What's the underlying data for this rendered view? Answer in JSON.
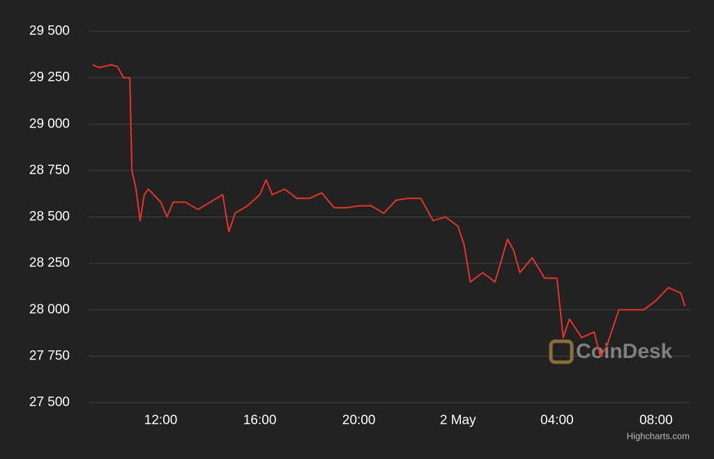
{
  "chart_data": {
    "type": "line",
    "x": [
      "1 May 09:15",
      "1 May 09:30",
      "1 May 10:00",
      "1 May 10:15",
      "1 May 10:30",
      "1 May 10:45",
      "1 May 10:50",
      "1 May 11:00",
      "1 May 11:10",
      "1 May 11:20",
      "1 May 11:30",
      "1 May 12:00",
      "1 May 12:15",
      "1 May 12:30",
      "1 May 13:00",
      "1 May 13:30",
      "1 May 14:00",
      "1 May 14:30",
      "1 May 14:45",
      "1 May 15:00",
      "1 May 15:30",
      "1 May 16:00",
      "1 May 16:15",
      "1 May 16:30",
      "1 May 17:00",
      "1 May 17:30",
      "1 May 18:00",
      "1 May 18:30",
      "1 May 19:00",
      "1 May 19:30",
      "1 May 20:00",
      "1 May 20:30",
      "1 May 21:00",
      "1 May 21:30",
      "1 May 22:00",
      "1 May 22:30",
      "1 May 23:00",
      "1 May 23:30",
      "2 May 00:00",
      "2 May 00:15",
      "2 May 00:30",
      "2 May 01:00",
      "2 May 01:30",
      "2 May 02:00",
      "2 May 02:15",
      "2 May 02:30",
      "2 May 03:00",
      "2 May 03:30",
      "2 May 04:00",
      "2 May 04:15",
      "2 May 04:30",
      "2 May 05:00",
      "2 May 05:30",
      "2 May 05:45",
      "2 May 06:00",
      "2 May 06:30",
      "2 May 07:00",
      "2 May 07:30",
      "2 May 08:00",
      "2 May 08:30",
      "2 May 09:00",
      "2 May 09:10"
    ],
    "series": [
      {
        "color": "#e8352b",
        "values": [
          29320,
          29305,
          29320,
          29310,
          29250,
          29250,
          28750,
          28650,
          28480,
          28620,
          28650,
          28580,
          28500,
          28580,
          28580,
          28540,
          28580,
          28620,
          28420,
          28520,
          28560,
          28620,
          28700,
          28620,
          28650,
          28600,
          28600,
          28630,
          28550,
          28550,
          28560,
          28560,
          28520,
          28590,
          28600,
          28600,
          28480,
          28500,
          28450,
          28350,
          28150,
          28200,
          28150,
          28380,
          28320,
          28200,
          28280,
          28170,
          28170,
          27850,
          27950,
          27850,
          27880,
          27750,
          27800,
          28000,
          28000,
          28000,
          28050,
          28120,
          28090,
          28020
        ]
      }
    ],
    "xlim": [
      "1 May 09:05",
      "2 May 09:23"
    ],
    "xticks": [
      {
        "value": "1 May 12:00",
        "label": "12:00"
      },
      {
        "value": "1 May 16:00",
        "label": "16:00"
      },
      {
        "value": "1 May 20:00",
        "label": "20:00"
      },
      {
        "value": "2 May 00:00",
        "label": "2 May"
      },
      {
        "value": "2 May 04:00",
        "label": "04:00"
      },
      {
        "value": "2 May 08:00",
        "label": "08:00"
      }
    ],
    "ylim": [
      27500,
      29500
    ],
    "yticks": [
      {
        "value": 27500,
        "label": "27 500"
      },
      {
        "value": 27750,
        "label": "27 750"
      },
      {
        "value": 28000,
        "label": "28 000"
      },
      {
        "value": 28250,
        "label": "28 250"
      },
      {
        "value": 28500,
        "label": "28 500"
      },
      {
        "value": 28750,
        "label": "28 750"
      },
      {
        "value": 29000,
        "label": "29 000"
      },
      {
        "value": 29250,
        "label": "29 250"
      },
      {
        "value": 29500,
        "label": "29 500"
      }
    ],
    "grid": true,
    "grid_color": "#444444",
    "watermark": "CoinDesk",
    "credits": "Highcharts.com"
  }
}
